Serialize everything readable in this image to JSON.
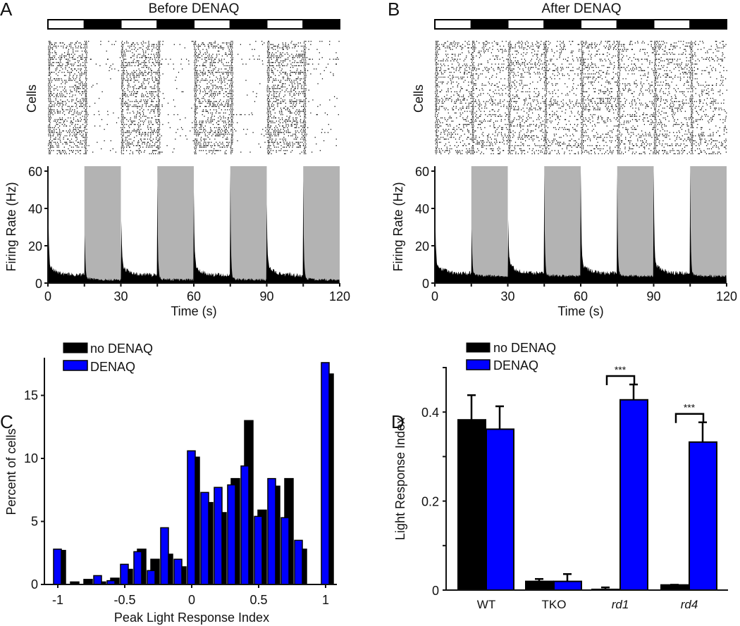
{
  "colors": {
    "no_denaq": "#000000",
    "denaq": "#0000ff",
    "dark_band": "#b3b3b3"
  },
  "chart_data": [
    {
      "panel": "A",
      "type": "line",
      "title": "Before DENAQ",
      "raster_ylabel": "Cells",
      "xlabel": "Time (s)",
      "ylabel": "Firing Rate (Hz)",
      "xlim": [
        0,
        120
      ],
      "ylim": [
        0,
        60
      ],
      "xticks": [
        "0",
        "30",
        "60",
        "90",
        "120"
      ],
      "yticks": [
        "0",
        "20",
        "40",
        "60"
      ],
      "light_periods": [
        [
          0,
          15
        ],
        [
          30,
          45
        ],
        [
          60,
          75
        ],
        [
          90,
          105
        ]
      ],
      "dark_periods": [
        [
          15,
          30
        ],
        [
          45,
          60
        ],
        [
          75,
          90
        ],
        [
          105,
          120
        ]
      ],
      "transient_peaks_hz": [
        {
          "t": 0,
          "peak": 55
        },
        {
          "t": 15,
          "peak": 52
        },
        {
          "t": 30,
          "peak": 53
        },
        {
          "t": 45,
          "peak": 50
        },
        {
          "t": 60,
          "peak": 40
        },
        {
          "t": 75,
          "peak": 57
        },
        {
          "t": 90,
          "peak": 33
        },
        {
          "t": 105,
          "peak": 53
        }
      ],
      "baseline_light_hz": 3,
      "baseline_dark_hz": 1
    },
    {
      "panel": "B",
      "type": "line",
      "title": "After DENAQ",
      "raster_ylabel": "Cells",
      "xlabel": "Time (s)",
      "ylabel": "Firing Rate (Hz)",
      "xlim": [
        0,
        120
      ],
      "ylim": [
        0,
        60
      ],
      "xticks": [
        "0",
        "30",
        "60",
        "90",
        "120"
      ],
      "yticks": [
        "0",
        "20",
        "40",
        "60"
      ],
      "light_periods": [
        [
          0,
          15
        ],
        [
          30,
          45
        ],
        [
          60,
          75
        ],
        [
          90,
          105
        ]
      ],
      "dark_periods": [
        [
          15,
          30
        ],
        [
          45,
          60
        ],
        [
          75,
          90
        ],
        [
          105,
          120
        ]
      ],
      "transient_peaks_hz": [
        {
          "t": 0,
          "peak": 50
        },
        {
          "t": 15,
          "peak": 54
        },
        {
          "t": 30,
          "peak": 52
        },
        {
          "t": 45,
          "peak": 54
        },
        {
          "t": 60,
          "peak": 53
        },
        {
          "t": 75,
          "peak": 53
        },
        {
          "t": 90,
          "peak": 53
        },
        {
          "t": 105,
          "peak": 57
        }
      ],
      "baseline_light_hz": 4,
      "baseline_dark_hz": 3
    },
    {
      "panel": "C",
      "type": "bar",
      "xlabel": "Peak Light Response Index",
      "ylabel": "Percent of cells",
      "xlim": [
        -1.05,
        1.05
      ],
      "ylim": [
        0,
        18
      ],
      "xticks": [
        "-1",
        "-0.5",
        "0",
        "0.5",
        "1"
      ],
      "yticks": [
        "0",
        "5",
        "10",
        "15"
      ],
      "legend": "top-left",
      "x": [
        -1,
        -0.9,
        -0.8,
        -0.7,
        -0.6,
        -0.5,
        -0.4,
        -0.3,
        -0.2,
        -0.1,
        0,
        0.1,
        0.2,
        0.3,
        0.4,
        0.5,
        0.6,
        0.7,
        0.8,
        0.9,
        1
      ],
      "series": [
        {
          "name": "no DENAQ",
          "values": [
            2.7,
            0.2,
            0.4,
            0.2,
            0.5,
            1.2,
            2.8,
            2.0,
            2.4,
            1.4,
            10.1,
            6.5,
            5.7,
            8.4,
            13.0,
            5.9,
            7.8,
            8.4,
            2.8,
            0,
            16.7
          ]
        },
        {
          "name": "DENAQ",
          "values": [
            2.8,
            0,
            0,
            0.7,
            0.3,
            1.6,
            2.6,
            1.1,
            4.5,
            2.0,
            10.6,
            7.3,
            7.7,
            7.9,
            9.4,
            5.4,
            8.4,
            5.3,
            3.5,
            0,
            17.6
          ]
        }
      ]
    },
    {
      "panel": "D",
      "type": "bar",
      "xlabel": "",
      "ylabel": "Light Response Index",
      "ylim": [
        0,
        0.5
      ],
      "yticks": [
        "0",
        "0.2",
        "0.4"
      ],
      "legend": "top-left",
      "categories": [
        "WT",
        "TKO",
        "rd1",
        "rd4"
      ],
      "series": [
        {
          "name": "no DENAQ",
          "values": [
            0.381,
            0.018,
            0.0,
            0.01
          ],
          "errors": [
            0.057,
            0.007,
            0.006,
            0.002
          ]
        },
        {
          "name": "DENAQ",
          "values": [
            0.36,
            0.018,
            0.426,
            0.331
          ],
          "errors": [
            0.053,
            0.018,
            0.036,
            0.046
          ]
        }
      ],
      "significance": [
        {
          "category": "rd1",
          "label": "***"
        },
        {
          "category": "rd4",
          "label": "***"
        }
      ]
    }
  ]
}
